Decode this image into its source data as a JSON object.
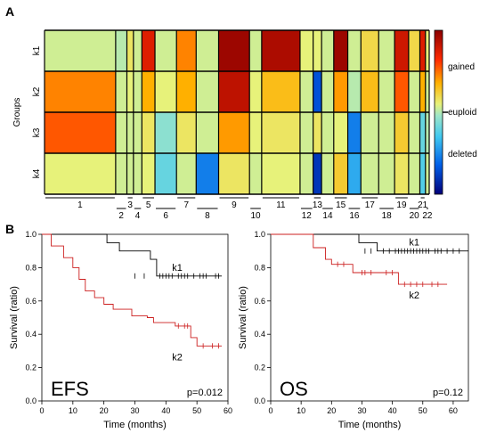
{
  "panel_a": {
    "label": "A",
    "y_axis_title": "Groups",
    "groups": [
      "k1",
      "k2",
      "k3",
      "k4"
    ],
    "colorbar": {
      "labels": [
        "gained",
        "euploid",
        "deleted"
      ]
    },
    "chromosome_labels": [
      "1",
      "2",
      "3",
      "4",
      "5",
      "6",
      "7",
      "8",
      "9",
      "10",
      "11",
      "12",
      "13",
      "14",
      "15",
      "16",
      "17",
      "18",
      "19",
      "20",
      "21",
      "22"
    ]
  },
  "panel_b": {
    "label": "B"
  },
  "colors": {
    "k1": "#000000",
    "k2": "#cc1f1f",
    "axis": "#000000"
  },
  "chart_data": [
    {
      "type": "heatmap",
      "title": "",
      "ylabel": "Groups",
      "rows": [
        "k1",
        "k2",
        "k3",
        "k4"
      ],
      "columns": [
        "1",
        "2",
        "3",
        "4",
        "5",
        "6",
        "7",
        "8",
        "9",
        "10",
        "11",
        "12",
        "13",
        "14",
        "15",
        "16",
        "17",
        "18",
        "19",
        "20",
        "21",
        "22"
      ],
      "scale": {
        "min_label": "deleted",
        "mid_label": "euploid",
        "max_label": "gained",
        "range": [
          -1,
          1
        ]
      },
      "values": [
        [
          0.05,
          0.0,
          0.15,
          0.05,
          0.75,
          0.05,
          0.45,
          0.05,
          0.95,
          0.05,
          0.9,
          0.1,
          0.1,
          0.05,
          0.95,
          0.05,
          0.2,
          0.05,
          0.8,
          0.2,
          0.75,
          0.1
        ],
        [
          0.45,
          0.05,
          0.1,
          0.05,
          0.35,
          0.1,
          0.35,
          0.05,
          0.85,
          0.1,
          0.3,
          0.05,
          -0.7,
          0.05,
          0.4,
          0.0,
          0.3,
          0.05,
          0.55,
          0.05,
          0.35,
          0.05
        ],
        [
          0.55,
          0.05,
          0.05,
          0.05,
          0.15,
          -0.1,
          0.15,
          0.05,
          0.4,
          0.1,
          0.15,
          0.05,
          0.15,
          0.05,
          0.1,
          -0.55,
          0.05,
          0.05,
          0.25,
          0.05,
          -0.2,
          0.0
        ],
        [
          0.1,
          0.05,
          0.05,
          0.05,
          0.1,
          -0.2,
          0.05,
          -0.55,
          0.15,
          0.05,
          0.1,
          0.05,
          -0.8,
          0.05,
          0.25,
          -0.4,
          0.05,
          0.05,
          0.15,
          0.05,
          -0.25,
          0.05
        ]
      ]
    },
    {
      "type": "line",
      "title": "EFS",
      "xlabel": "Time (months)",
      "ylabel": "Survival (ratio)",
      "xlim": [
        0,
        60
      ],
      "ylim": [
        0,
        1
      ],
      "xticks": [
        0,
        10,
        20,
        30,
        40,
        50,
        60
      ],
      "yticks": [
        0.0,
        0.2,
        0.4,
        0.6,
        0.8,
        1.0
      ],
      "annotation": "p=0.012",
      "series": [
        {
          "name": "k1",
          "x": [
            0,
            21,
            21,
            25,
            25,
            35,
            35,
            37,
            37,
            58
          ],
          "y": [
            1.0,
            1.0,
            0.95,
            0.95,
            0.9,
            0.9,
            0.85,
            0.85,
            0.75,
            0.75
          ],
          "censor_x": [
            30,
            33,
            38,
            39,
            40,
            41,
            42,
            44,
            45,
            46,
            47,
            49,
            51,
            52,
            53,
            56,
            57
          ],
          "censor_y": 0.75
        },
        {
          "name": "k2",
          "x": [
            0,
            3,
            3,
            7,
            7,
            10,
            10,
            12,
            12,
            14,
            14,
            17,
            17,
            20,
            20,
            23,
            23,
            29,
            29,
            34,
            34,
            36,
            36,
            43,
            43,
            48,
            48,
            50,
            50,
            58
          ],
          "y": [
            1.0,
            1.0,
            0.93,
            0.93,
            0.86,
            0.86,
            0.8,
            0.8,
            0.73,
            0.73,
            0.66,
            0.66,
            0.62,
            0.62,
            0.58,
            0.58,
            0.55,
            0.55,
            0.51,
            0.51,
            0.5,
            0.5,
            0.47,
            0.47,
            0.45,
            0.45,
            0.38,
            0.38,
            0.33,
            0.33
          ],
          "censor_x": [
            44,
            46,
            47,
            52,
            55,
            57
          ],
          "censor_y_values": [
            0.45,
            0.45,
            0.45,
            0.33,
            0.33,
            0.33
          ]
        }
      ]
    },
    {
      "type": "line",
      "title": "OS",
      "xlabel": "Time (months)",
      "ylabel": "Survival (ratio)",
      "xlim": [
        0,
        65
      ],
      "ylim": [
        0,
        1
      ],
      "xticks": [
        0,
        10,
        20,
        30,
        40,
        50,
        60
      ],
      "yticks": [
        0.0,
        0.2,
        0.4,
        0.6,
        0.8,
        1.0
      ],
      "annotation": "p=0.12",
      "series": [
        {
          "name": "k1",
          "x": [
            0,
            29,
            29,
            35,
            35,
            65
          ],
          "y": [
            1.0,
            1.0,
            0.95,
            0.95,
            0.9,
            0.9
          ],
          "censor_x": [
            31,
            33,
            37,
            39,
            41,
            42,
            43,
            44,
            45,
            46,
            47,
            48,
            49,
            50,
            51,
            52,
            54,
            55,
            56,
            58,
            60,
            62
          ],
          "censor_y": 0.9
        },
        {
          "name": "k2",
          "x": [
            0,
            14,
            14,
            18,
            18,
            20,
            20,
            27,
            27,
            42,
            42,
            58
          ],
          "y": [
            1.0,
            1.0,
            0.92,
            0.92,
            0.85,
            0.85,
            0.82,
            0.82,
            0.77,
            0.77,
            0.7,
            0.7
          ],
          "censor_x": [
            22,
            24,
            30,
            31,
            33,
            38,
            40,
            44,
            46,
            48,
            50,
            53,
            55
          ],
          "censor_y_values": [
            0.82,
            0.82,
            0.77,
            0.77,
            0.77,
            0.77,
            0.77,
            0.7,
            0.7,
            0.7,
            0.7,
            0.7,
            0.7
          ]
        }
      ]
    }
  ]
}
